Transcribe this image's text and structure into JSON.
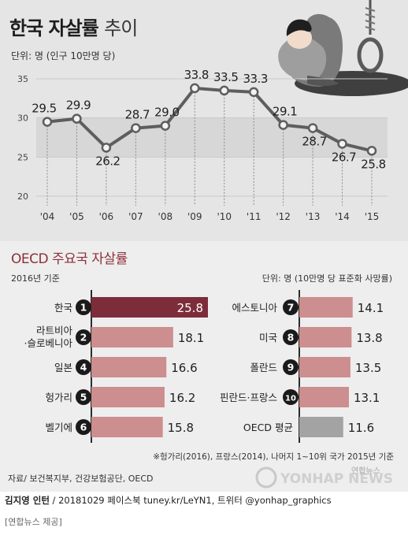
{
  "title": {
    "main": "한국 자살률",
    "sub": "추이"
  },
  "unit_top": "단위: 명 (인구 10만명 당)",
  "oecd_title": "OECD 주요국 자살률",
  "baseline": "2016년 기준",
  "unit_right": "단위: 명 (10만명 당 표준화 사망률)",
  "footnote": "※헝가리(2016), 프랑스(2014), 나머지 1~10위 국가 2015년 기준",
  "source": "자료/ 보건복지부, 건강보험공단, OECD",
  "watermark": {
    "text": "YONHAP NEWS",
    "brand": "연합뉴스"
  },
  "footer": {
    "author": "김지영 인턴",
    "rest": " / 20181029 페이스북 tuney.kr/LeYN1, 트위터 @yonhap_graphics"
  },
  "provide": "[연합뉴스 제공]",
  "colors": {
    "line": "#5e5e5e",
    "marker": "#f2f2f2",
    "highlight_bar": "#7d2d3a",
    "bar": "#cc8e8e",
    "avg_bar": "#a3a3a3",
    "badge": "#1a1a1a",
    "accent": "#8c2f3b"
  },
  "chart_data": [
    {
      "type": "line",
      "x": [
        "'04",
        "'05",
        "'06",
        "'07",
        "'08",
        "'09",
        "'10",
        "'11",
        "'12",
        "'13",
        "'14",
        "'15"
      ],
      "series": [
        {
          "values": [
            29.5,
            29.9,
            26.2,
            28.7,
            29.0,
            33.8,
            33.5,
            33.3,
            29.1,
            28.7,
            26.7,
            25.8
          ],
          "labels": [
            "29.5",
            "29.9",
            "26.2",
            "28.7",
            "29.0",
            "33.8",
            "33.5",
            "33.3",
            "29.1",
            "28.7",
            "26.7",
            "25.8"
          ]
        }
      ],
      "yticks": [
        "20",
        "25",
        "30",
        "35"
      ],
      "ylim": [
        20,
        35
      ],
      "grid": true
    },
    {
      "type": "bar",
      "orientation": "horizontal",
      "xlim": [
        0,
        25.8
      ],
      "columns": [
        {
          "items": [
            {
              "rank": "1",
              "name": "한국",
              "value": 25.8,
              "label": "25.8",
              "highlight": true
            },
            {
              "rank": "2",
              "name": "라트비아\n·슬로베니아",
              "value": 18.1,
              "label": "18.1"
            },
            {
              "rank": "4",
              "name": "일본",
              "value": 16.6,
              "label": "16.6"
            },
            {
              "rank": "5",
              "name": "헝가리",
              "value": 16.2,
              "label": "16.2"
            },
            {
              "rank": "6",
              "name": "벨기에",
              "value": 15.8,
              "label": "15.8"
            }
          ]
        },
        {
          "items": [
            {
              "rank": "7",
              "name": "에스토니아",
              "value": 14.1,
              "label": "14.1"
            },
            {
              "rank": "8",
              "name": "미국",
              "value": 13.8,
              "label": "13.8"
            },
            {
              "rank": "9",
              "name": "폴란드",
              "value": 13.5,
              "label": "13.5"
            },
            {
              "rank": "10",
              "name": "핀란드·프랑스",
              "value": 13.1,
              "label": "13.1"
            },
            {
              "rank": "",
              "name": "OECD 평균",
              "value": 11.6,
              "label": "11.6",
              "average": true
            }
          ]
        }
      ]
    }
  ]
}
